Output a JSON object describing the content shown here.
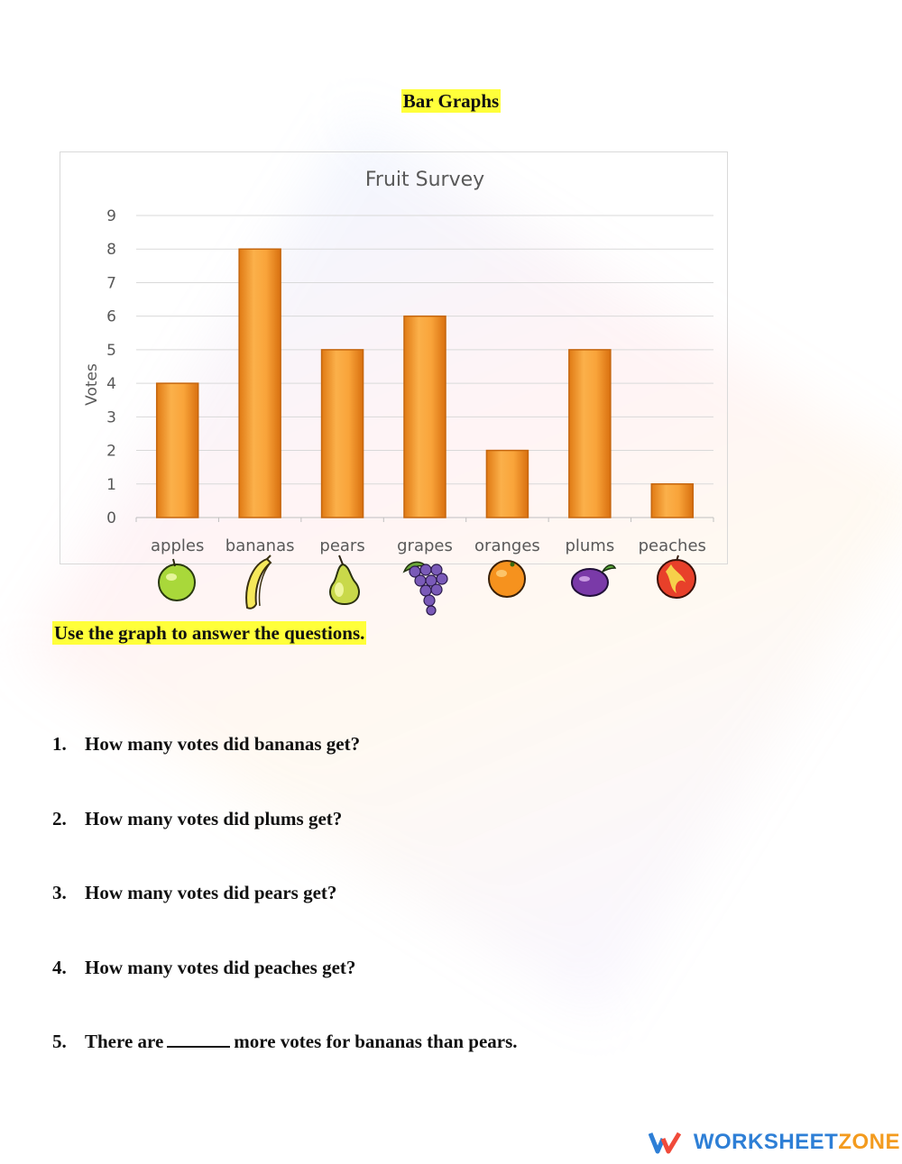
{
  "page_title": "Bar Graphs",
  "chart_data": {
    "type": "bar",
    "title": "Fruit Survey",
    "xlabel": "",
    "ylabel": "Votes",
    "categories": [
      "apples",
      "bananas",
      "pears",
      "grapes",
      "oranges",
      "plums",
      "peaches"
    ],
    "values": [
      4,
      8,
      5,
      6,
      2,
      5,
      1
    ],
    "ylim": [
      0,
      9
    ],
    "yticks": [
      "0",
      "1",
      "2",
      "3",
      "4",
      "5",
      "6",
      "7",
      "8",
      "9"
    ],
    "grid": true,
    "legend": "none",
    "bar_color": "#f39a2b",
    "bar_edge_color": "#c5660e"
  },
  "fruit_icons": [
    "apple-icon",
    "banana-icon",
    "pear-icon",
    "grapes-icon",
    "orange-icon",
    "plum-icon",
    "peach-icon"
  ],
  "instruction": "Use the graph to answer the questions.",
  "questions": [
    {
      "num": "1.",
      "text": "How many votes did bananas get?"
    },
    {
      "num": "2.",
      "text": "How many votes did plums get?"
    },
    {
      "num": "3.",
      "text": "How many votes did pears get?"
    },
    {
      "num": "4.",
      "text": "How many votes did peaches get?"
    },
    {
      "num": "5.",
      "text_before": "There are",
      "text_after": "more votes for bananas than pears."
    }
  ],
  "brand": {
    "part1": "WORKSHEET",
    "part2": "ZONE"
  },
  "colors": {
    "highlight": "#ffff3a",
    "brand_blue": "#2e7fd6",
    "brand_orange": "#f39b1e"
  }
}
